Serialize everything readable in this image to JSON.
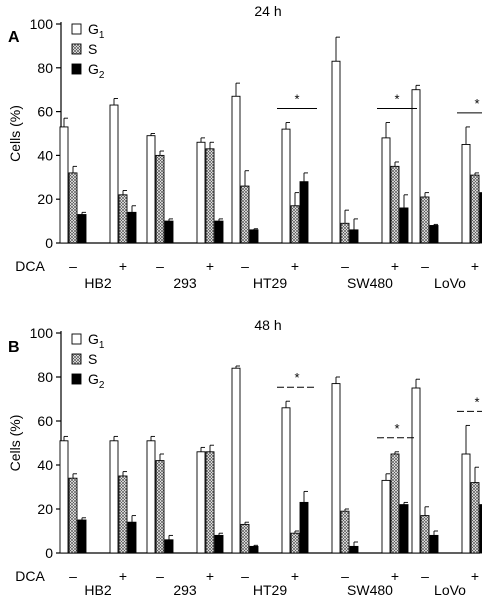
{
  "chart_data": [
    {
      "type": "bar",
      "panel_label": "A",
      "title": "24 h",
      "ylabel": "Cells (%)",
      "ylim": [
        0,
        100
      ],
      "yticks": [
        0,
        20,
        40,
        60,
        80,
        100
      ],
      "treatment_label": "DCA",
      "treatment_marks": [
        "–",
        "+"
      ],
      "cell_lines": [
        "HB2",
        "293",
        "HT29",
        "SW480",
        "LoVo"
      ],
      "series": [
        {
          "name": "G1",
          "pattern": "open",
          "values": [
            53,
            63,
            49,
            46,
            67,
            52,
            83,
            48,
            70,
            45
          ],
          "errors": [
            4,
            3,
            1,
            2,
            6,
            3,
            11,
            7,
            2,
            8
          ]
        },
        {
          "name": "S",
          "pattern": "hatched",
          "values": [
            32,
            22,
            40,
            43,
            26,
            17,
            9,
            35,
            21,
            31
          ],
          "errors": [
            3,
            2,
            2,
            3,
            7,
            6,
            6,
            2,
            2,
            1
          ]
        },
        {
          "name": "G2",
          "pattern": "solid",
          "values": [
            13,
            14,
            10,
            10,
            6,
            28,
            6,
            16,
            8,
            23
          ],
          "errors": [
            1,
            3,
            1,
            1,
            0.5,
            4,
            5,
            6,
            0.5,
            7
          ]
        }
      ],
      "significance": [
        {
          "line": "HT29",
          "symbol": "*",
          "style": "solid"
        },
        {
          "line": "SW480",
          "symbol": "*",
          "style": "solid"
        },
        {
          "line": "LoVo",
          "symbol": "*",
          "style": "solid"
        }
      ]
    },
    {
      "type": "bar",
      "panel_label": "B",
      "title": "48 h",
      "ylabel": "Cells (%)",
      "ylim": [
        0,
        100
      ],
      "yticks": [
        0,
        20,
        40,
        60,
        80,
        100
      ],
      "treatment_label": "DCA",
      "treatment_marks": [
        "–",
        "+"
      ],
      "cell_lines": [
        "HB2",
        "293",
        "HT29",
        "SW480",
        "LoVo"
      ],
      "series": [
        {
          "name": "G1",
          "pattern": "open",
          "values": [
            51,
            51,
            51,
            46,
            84,
            66,
            77,
            33,
            75,
            45
          ],
          "errors": [
            2,
            2,
            2,
            2,
            1,
            3,
            3,
            3,
            4,
            13
          ]
        },
        {
          "name": "S",
          "pattern": "hatched",
          "values": [
            34,
            35,
            42,
            46,
            13,
            9,
            19,
            45,
            17,
            32
          ],
          "errors": [
            2,
            2,
            3,
            3,
            1,
            1,
            1,
            1,
            4,
            7
          ]
        },
        {
          "name": "G2",
          "pattern": "solid",
          "values": [
            15,
            14,
            6,
            8,
            3,
            23,
            3,
            22,
            8,
            22
          ],
          "errors": [
            1,
            3,
            2,
            1,
            0.5,
            5,
            2,
            1,
            2,
            5
          ]
        }
      ],
      "significance": [
        {
          "line": "HT29",
          "symbol": "*",
          "style": "dashed"
        },
        {
          "line": "SW480",
          "symbol": "*",
          "style": "dashed"
        },
        {
          "line": "LoVo",
          "symbol": "*",
          "style": "dashed"
        }
      ]
    }
  ]
}
